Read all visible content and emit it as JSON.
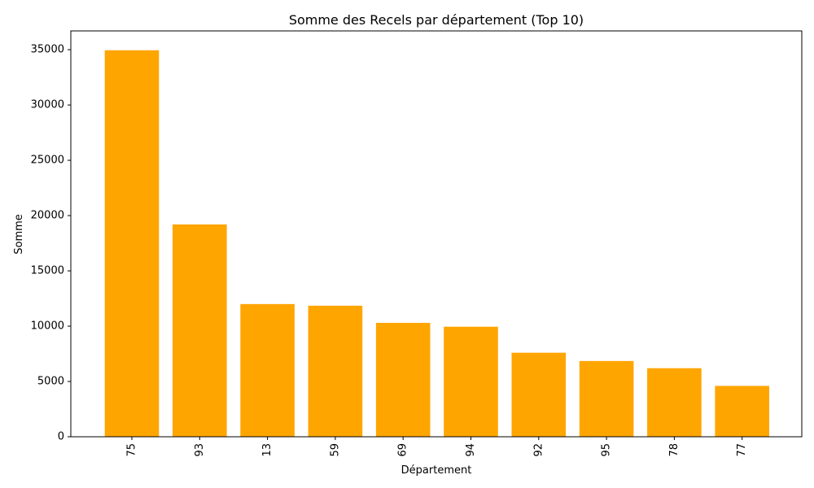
{
  "chart_data": {
    "type": "bar",
    "title": "Somme des Recels par département (Top 10)",
    "xlabel": "Département",
    "ylabel": "Somme",
    "categories": [
      "75",
      "93",
      "13",
      "59",
      "69",
      "94",
      "92",
      "95",
      "78",
      "77"
    ],
    "values": [
      34950,
      19200,
      12000,
      11850,
      10300,
      9950,
      7600,
      6850,
      6200,
      4600
    ],
    "ylim": [
      0,
      36700
    ],
    "yticks": [
      0,
      5000,
      10000,
      15000,
      20000,
      25000,
      30000,
      35000
    ],
    "bar_color": "#FFA500",
    "grid": false,
    "x_tick_rotation": "vertical"
  }
}
